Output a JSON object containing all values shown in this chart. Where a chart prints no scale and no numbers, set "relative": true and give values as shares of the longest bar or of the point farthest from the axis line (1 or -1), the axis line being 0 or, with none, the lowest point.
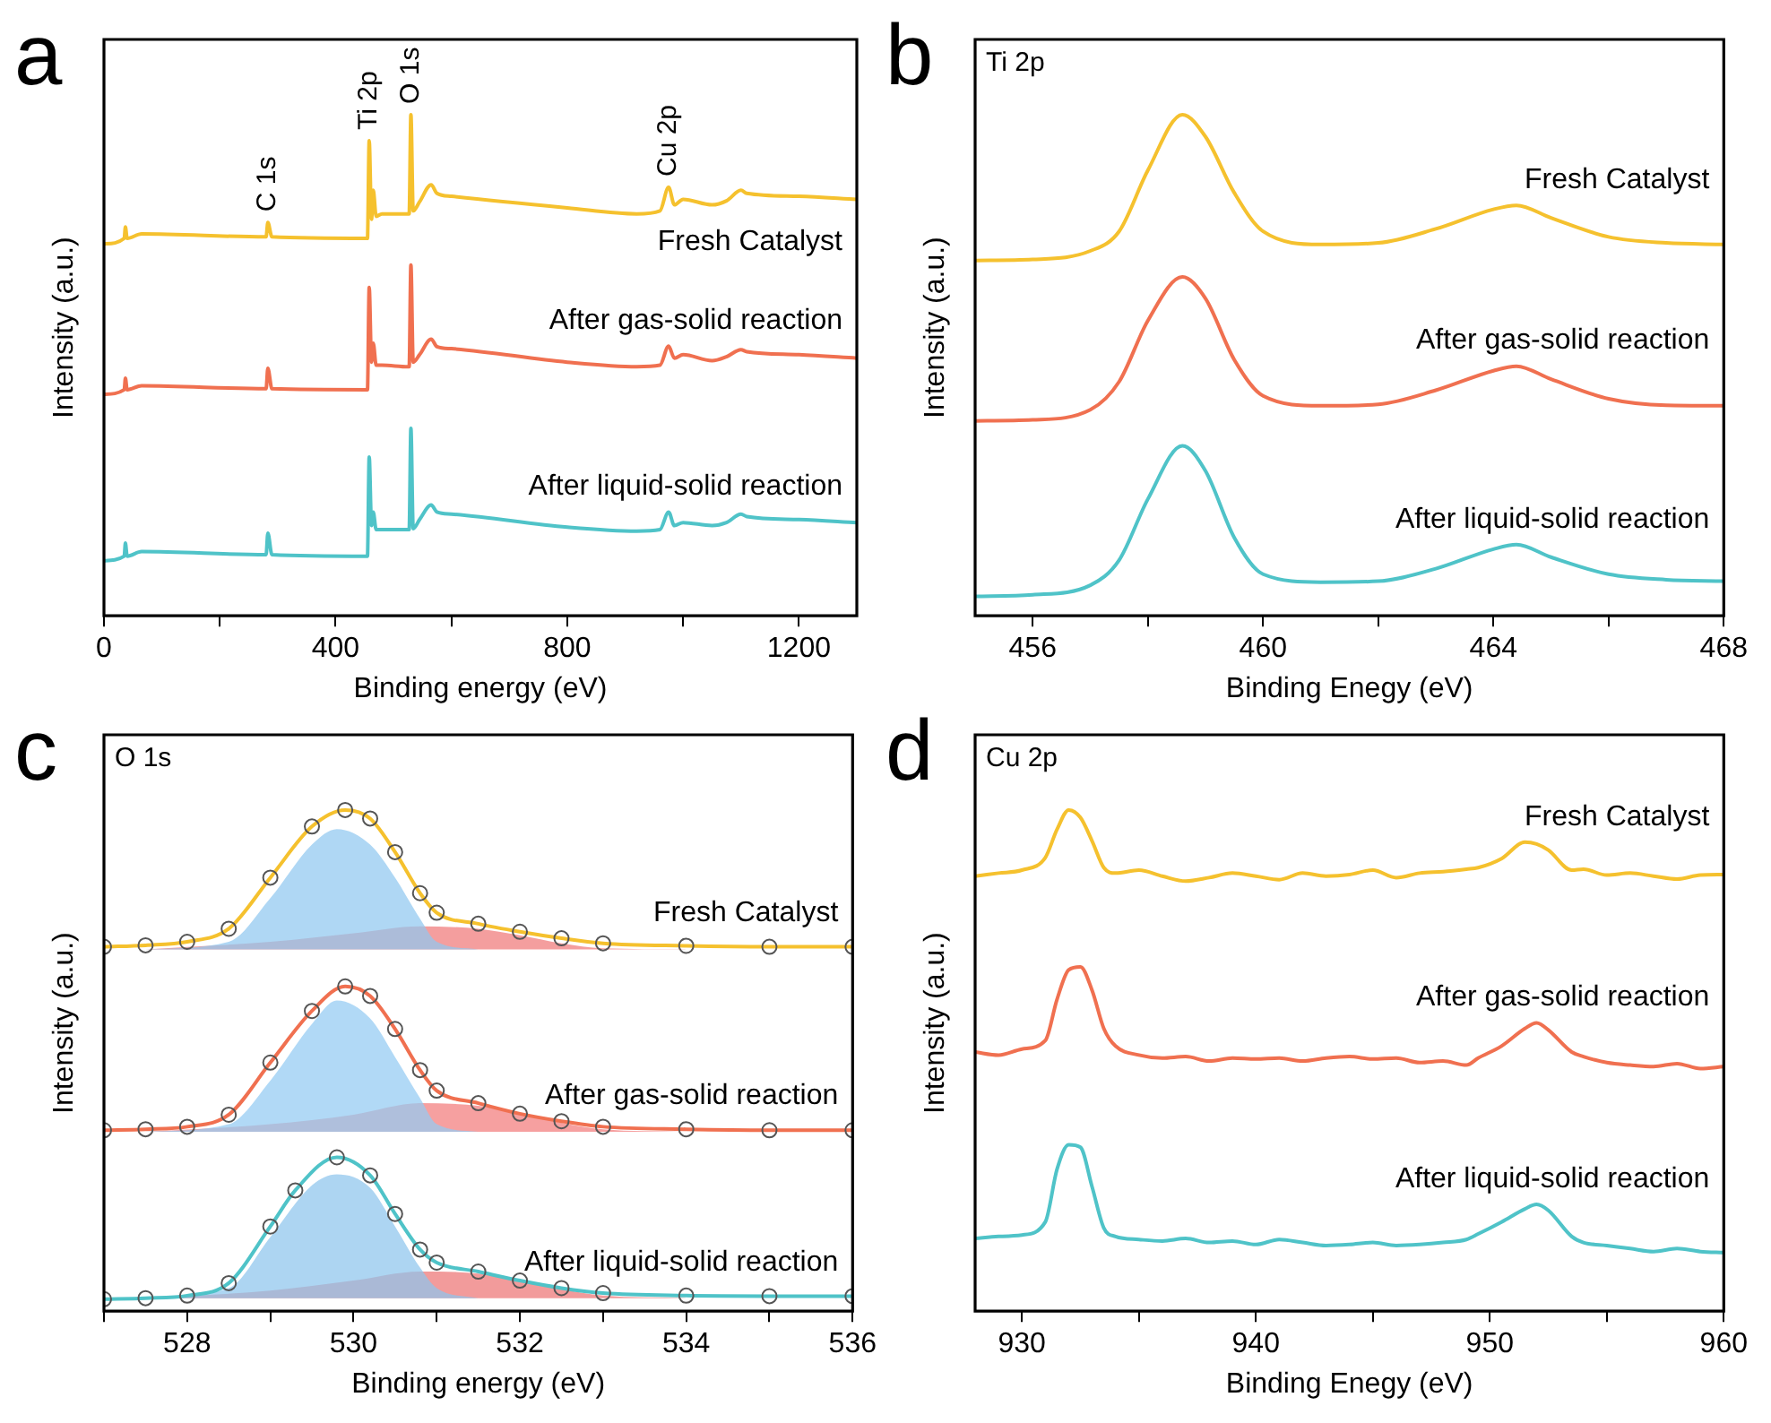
{
  "chart_data": [
    {
      "type": "line",
      "title": "a",
      "xlabel": "Binding energy (eV)",
      "ylabel": "Intensity (a.u.)",
      "relative": true,
      "xlim": [
        0,
        1300
      ],
      "xticks": [
        0,
        {
          "value": 200,
          "label": null
        },
        400,
        {
          "value": 600,
          "label": null
        },
        800,
        {
          "value": 1000,
          "label": null
        },
        1200
      ],
      "x": [
        0,
        35,
        37,
        40,
        65,
        280,
        283,
        290,
        455,
        458,
        462,
        465,
        470,
        480,
        525,
        527,
        530,
        534,
        545,
        565,
        575,
        600,
        800,
        920,
        960,
        975,
        985,
        1000,
        1050,
        1075,
        1100,
        1110,
        1200,
        1300
      ],
      "annotations": [
        {
          "text": "C 1s",
          "x": 283,
          "y": 0.785
        },
        {
          "text": "Ti 2p",
          "x": 458,
          "y": 0.948
        },
        {
          "text": "O 1s",
          "x": 530,
          "y": 1
        },
        {
          "text": "Cu 2p",
          "x": 975,
          "y": 0.855
        }
      ],
      "series": [
        {
          "name": "Fresh Catalyst",
          "color": "#f5c12e",
          "values": [
            0.742,
            0.753,
            0.776,
            0.753,
            0.762,
            0.756,
            0.785,
            0.756,
            0.753,
            0.948,
            0.791,
            0.849,
            0.797,
            0.802,
            0.802,
            0.802,
            1,
            0.808,
            0.826,
            0.86,
            0.843,
            0.837,
            0.814,
            0.802,
            0.808,
            0.855,
            0.82,
            0.831,
            0.82,
            0.828,
            0.849,
            0.843,
            0.837,
            0.831
          ]
        },
        {
          "name": "After gas-solid reaction",
          "color": "#f07050",
          "values": [
            0.442,
            0.451,
            0.474,
            0.451,
            0.459,
            0.453,
            0.494,
            0.453,
            0.451,
            0.655,
            0.506,
            0.544,
            0.5,
            0.5,
            0.497,
            0.497,
            0.7,
            0.506,
            0.521,
            0.552,
            0.537,
            0.533,
            0.506,
            0.497,
            0.5,
            0.538,
            0.514,
            0.521,
            0.509,
            0.517,
            0.531,
            0.527,
            0.521,
            0.514
          ]
        },
        {
          "name": "After liquid-solid reaction",
          "color": "#4fc3c8",
          "values": [
            0.11,
            0.119,
            0.145,
            0.119,
            0.128,
            0.122,
            0.165,
            0.122,
            0.119,
            0.317,
            0.18,
            0.207,
            0.172,
            0.172,
            0.172,
            0.172,
            0.374,
            0.174,
            0.192,
            0.221,
            0.207,
            0.203,
            0.177,
            0.169,
            0.172,
            0.207,
            0.18,
            0.186,
            0.18,
            0.186,
            0.203,
            0.198,
            0.192,
            0.186
          ]
        }
      ]
    },
    {
      "type": "line",
      "title": "b",
      "subtitle": "Ti 2p",
      "xlabel": "Binding Enegy (eV)",
      "ylabel": "Intensity (a.u.)",
      "relative": true,
      "xlim": [
        455,
        468
      ],
      "xticks": [
        456,
        {
          "value": 458,
          "label": null
        },
        460,
        {
          "value": 462,
          "label": null
        },
        464,
        {
          "value": 466,
          "label": null
        },
        468
      ],
      "x": [
        455,
        456,
        457,
        457.5,
        458,
        458.6,
        459,
        459.5,
        460,
        461,
        462,
        463,
        464,
        464.4,
        465,
        466,
        467,
        468
      ],
      "series": [
        {
          "name": "Fresh Catalyst",
          "color": "#f5c12e",
          "values": [
            0.709,
            0.711,
            0.728,
            0.767,
            0.889,
            1,
            0.956,
            0.844,
            0.767,
            0.741,
            0.744,
            0.772,
            0.811,
            0.819,
            0.794,
            0.756,
            0.744,
            0.741
          ]
        },
        {
          "name": "After gas-solid reaction",
          "color": "#f07050",
          "values": [
            0.389,
            0.391,
            0.411,
            0.467,
            0.589,
            0.676,
            0.633,
            0.511,
            0.439,
            0.419,
            0.422,
            0.45,
            0.489,
            0.498,
            0.472,
            0.433,
            0.42,
            0.419
          ]
        },
        {
          "name": "After liquid-solid reaction",
          "color": "#4fc3c8",
          "values": [
            0.039,
            0.042,
            0.061,
            0.111,
            0.233,
            0.339,
            0.289,
            0.156,
            0.083,
            0.067,
            0.069,
            0.094,
            0.133,
            0.142,
            0.117,
            0.083,
            0.072,
            0.069
          ]
        }
      ]
    },
    {
      "type": "line",
      "title": "c",
      "subtitle": "O 1s",
      "xlabel": "Binding energy (eV)",
      "ylabel": "Intensity (a.u.)",
      "relative": true,
      "xlim": [
        527,
        536
      ],
      "xticks": [
        {
          "value": 527,
          "label": null
        },
        528,
        {
          "value": 529,
          "label": null
        },
        530,
        {
          "value": 531,
          "label": null
        },
        532,
        {
          "value": 533,
          "label": null
        },
        534,
        {
          "value": 535,
          "label": null
        },
        536
      ],
      "series": [
        {
          "type": "area",
          "color": "#90c8f0",
          "x": [
            527.5,
            528.5,
            529,
            529.5,
            529.8,
            530.2,
            530.5,
            530.8,
            531,
            531.5
          ],
          "values": [
            0.722,
            0.737,
            0.824,
            0.931,
            0.962,
            0.931,
            0.865,
            0.783,
            0.737,
            0.722
          ]
        },
        {
          "type": "area",
          "color": "#f07878",
          "x": [
            527.5,
            529,
            530,
            530.8,
            531.5,
            532,
            532.5,
            533,
            534
          ],
          "values": [
            0.722,
            0.737,
            0.754,
            0.768,
            0.763,
            0.75,
            0.734,
            0.724,
            0.722
          ]
        },
        {
          "type": "area",
          "color": "#93cbf2",
          "x": [
            527.5,
            528.5,
            529,
            529.5,
            529.8,
            530.2,
            530.5,
            530.8,
            531,
            531.5
          ],
          "values": [
            0.358,
            0.373,
            0.46,
            0.573,
            0.62,
            0.584,
            0.507,
            0.425,
            0.373,
            0.358
          ]
        },
        {
          "type": "area",
          "color": "#f27b7b",
          "x": [
            527.5,
            529,
            530,
            530.8,
            531.5,
            532,
            532.5,
            533,
            534
          ],
          "values": [
            0.358,
            0.373,
            0.392,
            0.415,
            0.41,
            0.396,
            0.376,
            0.363,
            0.358
          ]
        },
        {
          "type": "area",
          "color": "#8dc5ed",
          "x": [
            527.5,
            528.5,
            529,
            529.5,
            529.8,
            530.2,
            530.5,
            530.8,
            531,
            531.5
          ],
          "values": [
            0.026,
            0.046,
            0.148,
            0.251,
            0.273,
            0.246,
            0.169,
            0.087,
            0.046,
            0.026
          ]
        },
        {
          "type": "area",
          "color": "#ed7575",
          "x": [
            527.5,
            529,
            530,
            530.8,
            531.5,
            532,
            532.5,
            533,
            534
          ],
          "values": [
            0.026,
            0.041,
            0.061,
            0.079,
            0.075,
            0.061,
            0.044,
            0.031,
            0.026
          ]
        },
        {
          "name": "Fresh Catalyst",
          "color": "#f5c12e",
          "marker": "circle",
          "x": [
            527,
            527.5,
            528,
            528.5,
            529,
            529.5,
            529.9,
            530.2,
            530.5,
            530.8,
            531,
            531.5,
            532,
            532.5,
            533,
            534,
            535,
            536
          ],
          "values": [
            0.727,
            0.73,
            0.737,
            0.763,
            0.865,
            0.967,
            1,
            0.983,
            0.916,
            0.834,
            0.795,
            0.773,
            0.757,
            0.744,
            0.734,
            0.729,
            0.727,
            0.727
          ]
        },
        {
          "name": "After gas-solid reaction",
          "color": "#f07050",
          "marker": "circle",
          "x": [
            527,
            527.5,
            528,
            528.5,
            529,
            529.5,
            529.9,
            530.2,
            530.5,
            530.8,
            531,
            531.5,
            532,
            532.5,
            533,
            534,
            535,
            536
          ],
          "values": [
            0.361,
            0.363,
            0.368,
            0.392,
            0.496,
            0.599,
            0.648,
            0.629,
            0.563,
            0.481,
            0.44,
            0.415,
            0.394,
            0.379,
            0.368,
            0.363,
            0.361,
            0.361
          ]
        },
        {
          "name": "After liquid-solid reaction",
          "color": "#4fc3c8",
          "marker": "circle",
          "x": [
            527,
            527.5,
            528,
            528.5,
            529,
            529.3,
            529.8,
            530.2,
            530.5,
            530.8,
            531,
            531.5,
            532,
            532.5,
            533,
            534,
            535,
            536
          ],
          "values": [
            0.024,
            0.026,
            0.031,
            0.056,
            0.169,
            0.241,
            0.307,
            0.271,
            0.194,
            0.123,
            0.097,
            0.079,
            0.061,
            0.046,
            0.036,
            0.031,
            0.03,
            0.03
          ]
        }
      ]
    },
    {
      "type": "line",
      "title": "d",
      "subtitle": "Cu 2p",
      "xlabel": "Binding Enegy (eV)",
      "ylabel": "Intensity (a.u.)",
      "relative": true,
      "xlim": [
        928,
        960
      ],
      "xticks": [
        930,
        {
          "value": 935,
          "label": null
        },
        940,
        {
          "value": 945,
          "label": null
        },
        950,
        {
          "value": 955,
          "label": null
        },
        960
      ],
      "x": [
        928,
        929,
        930,
        931,
        931.5,
        932,
        932.5,
        933,
        933.5,
        934,
        935,
        936,
        937,
        938,
        939,
        940,
        941,
        942,
        943,
        944,
        945,
        946,
        947,
        948,
        949,
        949.5,
        950.5,
        951.5,
        952,
        952.5,
        953.5,
        954,
        955,
        956,
        957,
        958,
        959,
        960
      ],
      "series": [
        {
          "name": "Fresh Catalyst",
          "color": "#f5c12e",
          "values": [
            0.868,
            0.874,
            0.88,
            0.905,
            0.961,
            1,
            0.985,
            0.938,
            0.885,
            0.874,
            0.88,
            0.868,
            0.858,
            0.865,
            0.874,
            0.868,
            0.861,
            0.874,
            0.868,
            0.871,
            0.88,
            0.865,
            0.874,
            0.877,
            0.882,
            0.885,
            0.903,
            0.936,
            0.932,
            0.92,
            0.88,
            0.882,
            0.87,
            0.874,
            0.868,
            0.862,
            0.87,
            0.871
          ]
        },
        {
          "name": "After gas-solid reaction",
          "color": "#f07050",
          "values": [
            0.517,
            0.511,
            0.523,
            0.54,
            0.622,
            0.681,
            0.687,
            0.64,
            0.564,
            0.529,
            0.511,
            0.505,
            0.508,
            0.499,
            0.505,
            0.503,
            0.505,
            0.499,
            0.505,
            0.508,
            0.503,
            0.505,
            0.496,
            0.499,
            0.491,
            0.505,
            0.529,
            0.564,
            0.575,
            0.561,
            0.517,
            0.508,
            0.496,
            0.491,
            0.488,
            0.494,
            0.484,
            0.488
          ]
        },
        {
          "name": "After liquid-solid reaction",
          "color": "#4fc3c8",
          "values": [
            0.145,
            0.149,
            0.152,
            0.178,
            0.283,
            0.332,
            0.327,
            0.248,
            0.166,
            0.149,
            0.143,
            0.14,
            0.145,
            0.137,
            0.14,
            0.133,
            0.143,
            0.137,
            0.131,
            0.133,
            0.137,
            0.131,
            0.133,
            0.137,
            0.143,
            0.154,
            0.178,
            0.204,
            0.213,
            0.201,
            0.149,
            0.137,
            0.131,
            0.125,
            0.119,
            0.125,
            0.119,
            0.117
          ]
        }
      ]
    }
  ]
}
